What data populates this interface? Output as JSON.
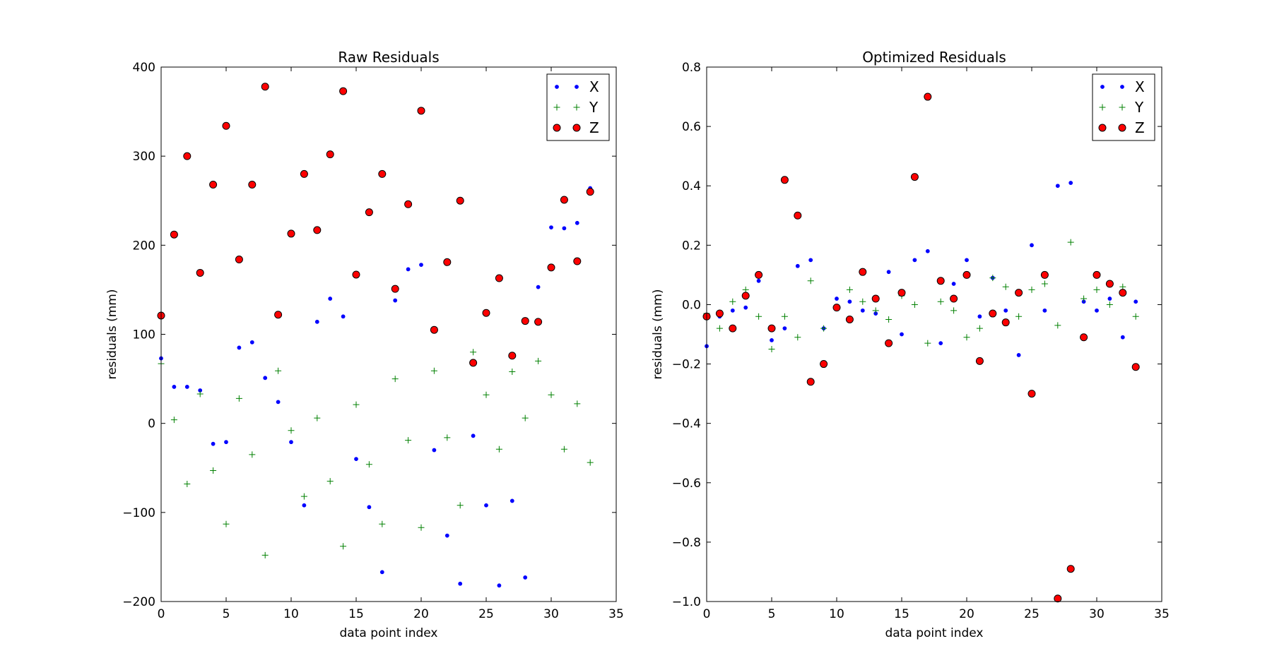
{
  "chart_data": [
    {
      "type": "scatter",
      "title": "Raw Residuals",
      "xlabel": "data point index",
      "ylabel": "residuals (mm)",
      "xlim": [
        0,
        35
      ],
      "ylim": [
        -200,
        400
      ],
      "xticks": [
        0,
        5,
        10,
        15,
        20,
        25,
        30,
        35
      ],
      "yticks": [
        -200,
        -100,
        0,
        100,
        200,
        300,
        400
      ],
      "xtick_labels": [
        "0",
        "5",
        "10",
        "15",
        "20",
        "25",
        "30",
        "35"
      ],
      "ytick_labels": [
        "−200",
        "−100",
        "0",
        "100",
        "200",
        "300",
        "400"
      ],
      "grid": false,
      "legend": "top-right",
      "series": [
        {
          "name": "X",
          "marker": "dot",
          "color": "#0000ff",
          "x": [
            0,
            1,
            2,
            3,
            4,
            5,
            6,
            7,
            8,
            9,
            10,
            11,
            12,
            13,
            14,
            15,
            16,
            17,
            18,
            19,
            20,
            21,
            22,
            23,
            24,
            25,
            26,
            27,
            28,
            29,
            30,
            31,
            32,
            33
          ],
          "y": [
            73,
            41,
            41,
            37,
            -23,
            -21,
            85,
            91,
            51,
            24,
            -21,
            -92,
            114,
            140,
            120,
            -40,
            -94,
            -167,
            138,
            173,
            178,
            -30,
            -126,
            -180,
            -14,
            -92,
            -182,
            -87,
            -173,
            153,
            220,
            219,
            225,
            264
          ]
        },
        {
          "name": "Y",
          "marker": "plus",
          "color": "#008000",
          "x": [
            0,
            1,
            2,
            3,
            4,
            5,
            6,
            7,
            8,
            9,
            10,
            11,
            12,
            13,
            14,
            15,
            16,
            17,
            18,
            19,
            20,
            21,
            22,
            23,
            24,
            25,
            26,
            27,
            28,
            29,
            30,
            31,
            32,
            33
          ],
          "y": [
            67,
            4,
            -68,
            33,
            -53,
            -113,
            28,
            -35,
            -148,
            59,
            -8,
            -82,
            6,
            -65,
            -138,
            21,
            -46,
            -113,
            50,
            -19,
            -117,
            59,
            -16,
            -92,
            80,
            32,
            -29,
            58,
            6,
            70,
            32,
            -29,
            22,
            -44
          ]
        },
        {
          "name": "Z",
          "marker": "circle",
          "color": "#ff0000",
          "x": [
            0,
            1,
            2,
            3,
            4,
            5,
            6,
            7,
            8,
            9,
            10,
            11,
            12,
            13,
            14,
            15,
            16,
            17,
            18,
            19,
            20,
            21,
            22,
            23,
            24,
            25,
            26,
            27,
            28,
            29,
            30,
            31,
            32,
            33
          ],
          "y": [
            121,
            212,
            300,
            169,
            268,
            334,
            184,
            268,
            378,
            122,
            213,
            280,
            217,
            302,
            373,
            167,
            237,
            280,
            151,
            246,
            351,
            105,
            181,
            250,
            68,
            124,
            163,
            76,
            115,
            114,
            175,
            251,
            182,
            260
          ]
        }
      ]
    },
    {
      "type": "scatter",
      "title": "Optimized Residuals",
      "xlabel": "data point index",
      "ylabel": "residuals (mm)",
      "xlim": [
        0,
        35
      ],
      "ylim": [
        -1.0,
        0.8
      ],
      "xticks": [
        0,
        5,
        10,
        15,
        20,
        25,
        30,
        35
      ],
      "yticks": [
        -1.0,
        -0.8,
        -0.6,
        -0.4,
        -0.2,
        0.0,
        0.2,
        0.4,
        0.6,
        0.8
      ],
      "xtick_labels": [
        "0",
        "5",
        "10",
        "15",
        "20",
        "25",
        "30",
        "35"
      ],
      "ytick_labels": [
        "−1.0",
        "−0.8",
        "−0.6",
        "−0.4",
        "−0.2",
        "0.0",
        "0.2",
        "0.4",
        "0.6",
        "0.8"
      ],
      "grid": false,
      "legend": "top-right",
      "series": [
        {
          "name": "X",
          "marker": "dot",
          "color": "#0000ff",
          "x": [
            0,
            1,
            2,
            3,
            4,
            5,
            6,
            7,
            8,
            9,
            10,
            11,
            12,
            13,
            14,
            15,
            16,
            17,
            18,
            19,
            20,
            21,
            22,
            23,
            24,
            25,
            26,
            27,
            28,
            29,
            30,
            31,
            32,
            33
          ],
          "y": [
            -0.14,
            -0.04,
            -0.02,
            -0.01,
            0.08,
            -0.12,
            -0.08,
            0.13,
            0.15,
            -0.08,
            0.02,
            0.01,
            -0.02,
            -0.03,
            0.11,
            -0.1,
            0.15,
            0.18,
            -0.13,
            0.07,
            0.15,
            -0.04,
            0.09,
            -0.02,
            -0.17,
            0.2,
            -0.02,
            0.4,
            0.41,
            0.01,
            -0.02,
            0.02,
            -0.11,
            0.01
          ]
        },
        {
          "name": "Y",
          "marker": "plus",
          "color": "#008000",
          "x": [
            0,
            1,
            2,
            3,
            4,
            5,
            6,
            7,
            8,
            9,
            10,
            11,
            12,
            13,
            14,
            15,
            16,
            17,
            18,
            19,
            20,
            21,
            22,
            23,
            24,
            25,
            26,
            27,
            28,
            29,
            30,
            31,
            32,
            33
          ],
          "y": [
            -0.03,
            -0.08,
            0.01,
            0.05,
            -0.04,
            -0.15,
            -0.04,
            -0.11,
            0.08,
            -0.08,
            -0.01,
            0.05,
            0.01,
            -0.02,
            -0.05,
            0.03,
            0.0,
            -0.13,
            0.01,
            -0.02,
            -0.11,
            -0.08,
            0.09,
            0.06,
            -0.04,
            0.05,
            0.07,
            -0.07,
            0.21,
            0.02,
            0.05,
            0.0,
            0.06,
            -0.04
          ]
        },
        {
          "name": "Z",
          "marker": "circle",
          "color": "#ff0000",
          "x": [
            0,
            1,
            2,
            3,
            4,
            5,
            6,
            7,
            8,
            9,
            10,
            11,
            12,
            13,
            14,
            15,
            16,
            17,
            18,
            19,
            20,
            21,
            22,
            23,
            24,
            25,
            26,
            27,
            28,
            29,
            30,
            31,
            32,
            33
          ],
          "y": [
            -0.04,
            -0.03,
            -0.08,
            0.03,
            0.1,
            -0.08,
            0.42,
            0.3,
            -0.26,
            -0.2,
            -0.01,
            -0.05,
            0.11,
            0.02,
            -0.13,
            0.04,
            0.43,
            0.7,
            0.08,
            0.02,
            0.1,
            -0.19,
            -0.03,
            -0.06,
            0.04,
            -0.3,
            0.1,
            -0.99,
            -0.89,
            -0.11,
            0.1,
            0.07,
            0.04,
            -0.21
          ]
        }
      ]
    }
  ]
}
